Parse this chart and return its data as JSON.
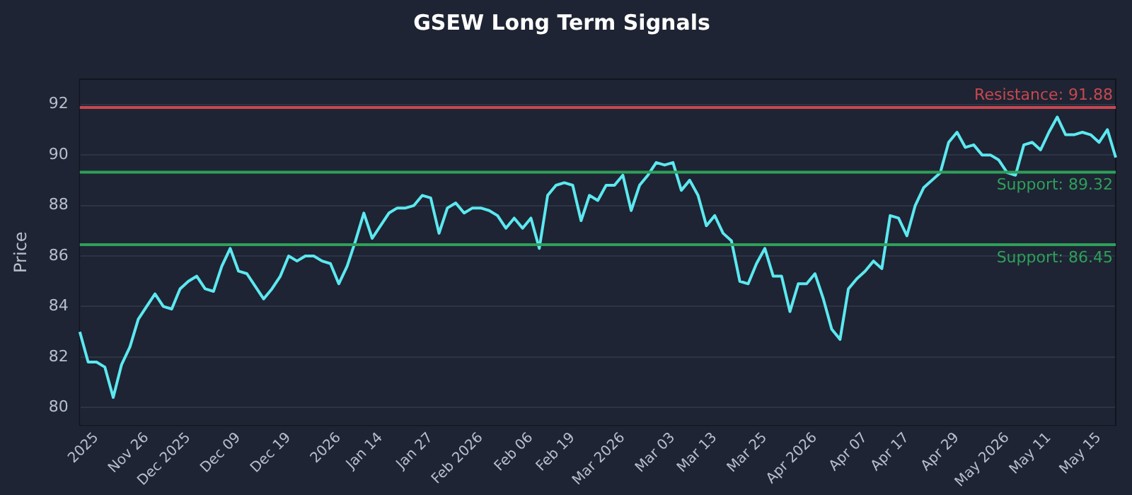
{
  "chart_data": {
    "type": "line",
    "title": "GSEW Long Term Signals",
    "ylabel": "Price",
    "categories": [
      null,
      null,
      "2025",
      null,
      null,
      null,
      null,
      null,
      "Nov 26",
      null,
      null,
      null,
      null,
      "Dec 2025",
      null,
      null,
      null,
      null,
      null,
      "Dec 09",
      null,
      null,
      null,
      null,
      null,
      "Dec 19",
      null,
      null,
      null,
      null,
      null,
      "2026",
      null,
      null,
      null,
      null,
      "Jan 14",
      null,
      null,
      null,
      null,
      null,
      "Jan 27",
      null,
      null,
      null,
      null,
      null,
      "Feb 2026",
      null,
      null,
      null,
      null,
      null,
      "Feb 06",
      null,
      null,
      null,
      null,
      "Feb 19",
      null,
      null,
      null,
      null,
      null,
      "Mar 2026",
      null,
      null,
      null,
      null,
      null,
      "Mar 03",
      null,
      null,
      null,
      null,
      "Mar 13",
      null,
      null,
      null,
      null,
      null,
      "Mar 25",
      null,
      null,
      null,
      null,
      null,
      "Apr 2026",
      null,
      null,
      null,
      null,
      null,
      "Apr 07",
      null,
      null,
      null,
      null,
      "Apr 17",
      null,
      null,
      null,
      null,
      null,
      "Apr 29",
      null,
      null,
      null,
      null,
      null,
      "May 2026",
      null,
      null,
      null,
      null,
      "May 11",
      null,
      null,
      null,
      null,
      null,
      "May 15",
      null,
      null
    ],
    "series": [
      {
        "color": "#5ce8f0",
        "values": [
          83.0,
          81.8,
          81.8,
          81.6,
          80.4,
          81.7,
          82.4,
          83.5,
          84.0,
          84.5,
          84.0,
          83.9,
          84.7,
          85.0,
          85.2,
          84.7,
          84.6,
          85.6,
          86.3,
          85.4,
          85.3,
          84.8,
          84.3,
          84.7,
          85.2,
          86.0,
          85.8,
          86.0,
          86.0,
          85.8,
          85.7,
          84.9,
          85.6,
          86.6,
          87.7,
          86.7,
          87.2,
          87.7,
          87.9,
          87.9,
          88.0,
          88.4,
          88.3,
          86.9,
          87.9,
          88.1,
          87.7,
          87.9,
          87.9,
          87.8,
          87.6,
          87.1,
          87.5,
          87.1,
          87.5,
          86.3,
          88.4,
          88.8,
          88.9,
          88.8,
          87.4,
          88.4,
          88.2,
          88.8,
          88.8,
          89.2,
          87.8,
          88.8,
          89.2,
          89.7,
          89.6,
          89.7,
          88.6,
          89.0,
          88.4,
          87.2,
          87.6,
          86.9,
          86.6,
          85.0,
          84.9,
          85.7,
          86.3,
          85.2,
          85.2,
          83.8,
          84.9,
          84.9,
          85.3,
          84.3,
          83.1,
          82.7,
          84.7,
          85.1,
          85.4,
          85.8,
          85.5,
          87.6,
          87.5,
          86.8,
          88.0,
          88.7,
          89.0,
          89.3,
          90.5,
          90.9,
          90.3,
          90.4,
          90.0,
          90.0,
          89.8,
          89.3,
          89.2,
          90.4,
          90.5,
          90.2,
          90.9,
          91.5,
          90.8,
          90.8,
          90.9,
          90.8,
          90.5,
          91.0,
          89.9
        ]
      }
    ],
    "ylim": [
      79.3,
      93.0
    ],
    "yticks": [
      80,
      82,
      84,
      86,
      88,
      90,
      92
    ],
    "grid": "y",
    "marker": "none",
    "line_style": "solid",
    "ref_lines": [
      {
        "axis": "y",
        "value": 91.88,
        "label": "Resistance: 91.88",
        "color": "#c9474f"
      },
      {
        "axis": "y",
        "value": 89.32,
        "label": "Support: 89.32",
        "color": "#2ea05a"
      },
      {
        "axis": "y",
        "value": 86.45,
        "label": "Support: 86.45",
        "color": "#2ea05a"
      }
    ]
  }
}
